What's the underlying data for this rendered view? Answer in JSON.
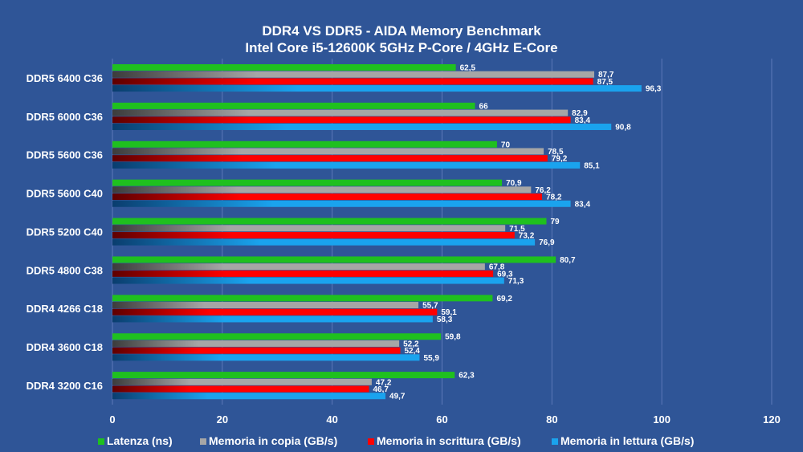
{
  "chart_data": {
    "type": "bar",
    "orientation": "horizontal",
    "title": "DDR4 VS DDR5 - AIDA Memory Benchmark",
    "subtitle": "Intel Core i5-12600K 5GHz P-Core / 4GHz E-Core",
    "categories": [
      "DDR5 6400 C36",
      "DDR5 6000 C36",
      "DDR5 5600 C36",
      "DDR5 5600 C40",
      "DDR5 5200 C40",
      "DDR5 4800 C38",
      "DDR4 4266 C18",
      "DDR4 3600 C18",
      "DDR4 3200 C16"
    ],
    "series": [
      {
        "name": "Latenza (ns)",
        "color": "#1fc01f",
        "labels": [
          "62,5",
          "66",
          "70",
          "70,9",
          "79",
          "80,7",
          "69,2",
          "59,8",
          "62,3"
        ],
        "values": [
          62.5,
          66,
          70,
          70.9,
          79,
          80.7,
          69.2,
          59.8,
          62.3
        ]
      },
      {
        "name": "Memoria in copia (GB/s)",
        "color": "#a6a6a6",
        "labels": [
          "87,7",
          "82,9",
          "78,5",
          "76,2",
          "71,5",
          "67,8",
          "55,7",
          "52,2",
          "47,2"
        ],
        "values": [
          87.7,
          82.9,
          78.5,
          76.2,
          71.5,
          67.8,
          55.7,
          52.2,
          47.2
        ]
      },
      {
        "name": "Memoria in scrittura (GB/s)",
        "color": "#ff0000",
        "labels": [
          "87,5",
          "83,4",
          "79,2",
          "78,2",
          "73,2",
          "69,3",
          "59,1",
          "52,4",
          "46,7"
        ],
        "values": [
          87.5,
          83.4,
          79.2,
          78.2,
          73.2,
          69.3,
          59.1,
          52.4,
          46.7
        ]
      },
      {
        "name": "Memoria in lettura (GB/s)",
        "color": "#1aa3ee",
        "labels": [
          "96,3",
          "90,8",
          "85,1",
          "83,4",
          "76,9",
          "71,3",
          "58,3",
          "55,9",
          "49,7"
        ],
        "values": [
          96.3,
          90.8,
          85.1,
          83.4,
          76.9,
          71.3,
          58.3,
          55.9,
          49.7
        ]
      }
    ],
    "x_ticks": [
      "0",
      "20",
      "40",
      "60",
      "80",
      "100",
      "120"
    ],
    "xlim": [
      0,
      120
    ],
    "grid": true,
    "legend_position": "bottom"
  }
}
